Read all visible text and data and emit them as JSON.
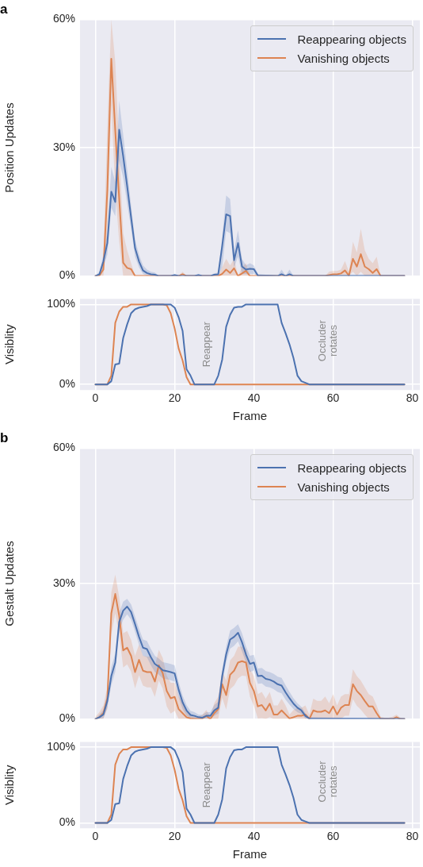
{
  "chart_data": [
    {
      "type": "line",
      "title": "a",
      "ylabel": "Position Updates",
      "xlim": [
        -3.9,
        81.9
      ],
      "xticks": [
        0,
        20,
        40,
        60,
        80
      ],
      "ylim": [
        0,
        60
      ],
      "yticks": [
        {
          "value": 0,
          "label": "0%"
        },
        {
          "value": 30,
          "label": "30%"
        },
        {
          "value": 60,
          "label": "60%"
        }
      ],
      "grid": true,
      "legend": "top right",
      "tick_labels": "y",
      "series": [
        {
          "name": "Reappearing objects",
          "color": "#4c72b0",
          "x": [
            0,
            1,
            2,
            3,
            4,
            5,
            6,
            7,
            8,
            9,
            10,
            11,
            12,
            13,
            14,
            15,
            16,
            19,
            20,
            21,
            25,
            26,
            27,
            29,
            30,
            31,
            32,
            33,
            34,
            35,
            36,
            37,
            38,
            39,
            40,
            41,
            46,
            47,
            48,
            49,
            50,
            78
          ],
          "values": [
            0,
            0.4,
            3.4,
            7.7,
            19.7,
            17.3,
            34.2,
            28,
            21,
            13.7,
            6.5,
            3.4,
            1.3,
            0.7,
            0.4,
            0.3,
            0,
            0,
            0.2,
            0,
            0,
            0.2,
            0,
            0,
            0.3,
            0.4,
            7,
            14.4,
            14,
            3.7,
            7.7,
            2.2,
            1.5,
            1.7,
            1.6,
            0.1,
            0,
            0.4,
            0,
            0.4,
            0,
            0
          ],
          "upper": [
            0,
            1,
            5,
            10,
            25.5,
            22,
            41,
            33,
            25,
            16.5,
            8.5,
            5,
            2.5,
            1.5,
            1,
            0.8,
            0,
            0,
            0.5,
            0,
            0,
            0.5,
            0,
            0,
            0.6,
            0.8,
            9,
            18.8,
            18,
            6,
            10.7,
            4,
            2.5,
            3,
            2.5,
            0.5,
            0,
            1.5,
            0,
            1.5,
            0,
            0
          ],
          "lower": [
            0,
            0,
            2,
            5,
            16,
            14,
            27,
            23,
            17,
            11,
            4.5,
            2,
            0.5,
            0,
            0,
            0,
            0,
            0,
            0,
            0,
            0,
            0,
            0,
            0,
            0,
            0,
            2,
            10.5,
            10,
            2,
            4.5,
            0.5,
            0.5,
            0.5,
            0.5,
            0,
            0,
            0,
            0,
            0,
            0,
            0
          ]
        },
        {
          "name": "Vanishing objects",
          "color": "#dd8452",
          "x": [
            0,
            1,
            2,
            3,
            4,
            5,
            6,
            7,
            8,
            9,
            10,
            21,
            22,
            23,
            31,
            32,
            33,
            34,
            35,
            36,
            37,
            38,
            39,
            58,
            59,
            60,
            61,
            62,
            63,
            64,
            65,
            66,
            67,
            68,
            69,
            70,
            71,
            72,
            78
          ],
          "values": [
            0,
            0.1,
            1.5,
            20,
            50.8,
            34,
            18,
            3.1,
            1.9,
            1.6,
            0,
            0,
            0.4,
            0,
            0,
            0.5,
            1.5,
            0.7,
            1.8,
            0,
            0.6,
            1.2,
            0,
            0,
            0.2,
            0.4,
            0.4,
            0.6,
            1.3,
            0.1,
            4,
            2.2,
            5.1,
            2.2,
            1.6,
            0.7,
            1.6,
            0,
            0
          ],
          "upper": [
            0,
            0.5,
            4,
            35,
            60,
            50,
            30,
            10,
            6,
            3,
            0,
            0,
            1,
            0,
            0,
            2,
            4,
            2.5,
            4,
            0,
            2,
            3,
            0,
            0,
            1,
            1.2,
            1.2,
            1.5,
            3.5,
            1,
            8,
            5.5,
            11,
            6,
            4,
            3,
            4.5,
            0,
            0
          ],
          "lower": [
            0,
            0,
            0,
            10,
            40,
            20,
            8,
            0,
            0,
            0,
            0,
            0,
            0,
            0,
            0,
            0,
            0,
            0,
            0,
            0,
            0,
            0,
            0,
            0,
            0,
            0,
            0,
            0,
            0,
            0,
            1,
            0,
            1,
            0,
            0,
            0,
            0,
            0,
            0
          ]
        }
      ]
    },
    {
      "type": "line",
      "xlabel": "Frame",
      "ylabel": "Visiblity",
      "xlim": [
        -3.9,
        81.9
      ],
      "xticks": [
        0,
        20,
        40,
        60,
        80
      ],
      "ylim": [
        -7,
        107
      ],
      "yticks": [
        {
          "value": 0,
          "label": "0%"
        },
        {
          "value": 100,
          "label": "100%"
        }
      ],
      "grid": true,
      "annotations": [
        "Reappear",
        "Occluder rotates"
      ],
      "series": [
        {
          "color": "#4c72b0",
          "x": [
            0,
            3,
            4,
            5,
            6,
            7,
            8,
            9,
            10,
            11,
            12,
            13,
            14,
            19,
            20,
            21,
            22,
            23,
            24,
            25,
            30,
            31,
            32,
            33,
            34,
            35,
            36,
            37,
            38,
            46,
            47,
            48,
            49,
            50,
            51,
            52,
            53,
            54,
            78
          ],
          "values": [
            0,
            0,
            4,
            25,
            26,
            58,
            75,
            89,
            94,
            96,
            97,
            98,
            100,
            100,
            96,
            84,
            67,
            19,
            11,
            0,
            0,
            11,
            31,
            72,
            87,
            96,
            97,
            97,
            100,
            100,
            77,
            64,
            50,
            33,
            11,
            4,
            2,
            0,
            0
          ]
        },
        {
          "color": "#dd8452",
          "x": [
            0,
            3,
            4,
            5,
            6,
            7,
            8,
            9,
            17,
            18,
            19,
            20,
            21,
            22,
            23,
            24,
            78
          ],
          "values": [
            0,
            0,
            11,
            77,
            91,
            97,
            97,
            100,
            100,
            99,
            89,
            70,
            45,
            30,
            9,
            0,
            0
          ]
        }
      ]
    },
    {
      "type": "line",
      "title": "b",
      "ylabel": "Gestalt Updates",
      "xlim": [
        -3.9,
        81.9
      ],
      "xticks": [
        0,
        20,
        40,
        60,
        80
      ],
      "ylim": [
        0,
        60
      ],
      "yticks": [
        {
          "value": 0,
          "label": "0%"
        },
        {
          "value": 30,
          "label": "30%"
        },
        {
          "value": 60,
          "label": "60%"
        }
      ],
      "grid": true,
      "legend": "top right",
      "tick_labels": "y",
      "series": [
        {
          "name": "Reappearing objects",
          "color": "#4c72b0",
          "x": [
            0,
            1,
            2,
            3,
            4,
            5,
            6,
            7,
            8,
            9,
            10,
            11,
            12,
            13,
            14,
            15,
            16,
            17,
            18,
            19,
            20,
            21,
            22,
            23,
            24,
            25,
            26,
            27,
            28,
            29,
            30,
            31,
            32,
            33,
            34,
            35,
            36,
            37,
            38,
            39,
            40,
            41,
            42,
            43,
            44,
            45,
            46,
            47,
            48,
            49,
            50,
            51,
            52,
            53,
            54,
            78
          ],
          "values": [
            0,
            0.4,
            1,
            4,
            9.5,
            12.5,
            21.5,
            24,
            24.9,
            23.7,
            21,
            18.2,
            15.8,
            15.5,
            13.7,
            12.2,
            11.6,
            10.8,
            10.6,
            10.4,
            10.1,
            6.5,
            3.7,
            1.9,
            0.9,
            0.7,
            0.4,
            0.3,
            0.7,
            0.7,
            1.9,
            2.5,
            9.5,
            14.3,
            17.6,
            18.2,
            19.1,
            17,
            14.3,
            12.2,
            12.5,
            9.5,
            9.6,
            8.9,
            8.7,
            8.3,
            7.7,
            7.4,
            5.9,
            4.6,
            3.4,
            2.5,
            1.9,
            0.7,
            0.1,
            0
          ],
          "upper": [
            0,
            1,
            2,
            5.5,
            11.5,
            14.5,
            23.5,
            26,
            26.6,
            25.4,
            22.7,
            20,
            17.6,
            17.3,
            15.5,
            14,
            13.4,
            12.6,
            12.4,
            12.2,
            11.9,
            8.2,
            5.2,
            3.1,
            1.8,
            1.5,
            1,
            0.9,
            1.5,
            1.5,
            3.1,
            3.8,
            11,
            16,
            19.6,
            20.2,
            21,
            19,
            16.1,
            14,
            14.2,
            11.2,
            11.3,
            10.6,
            10.4,
            10,
            9.4,
            9.1,
            7.5,
            6,
            4.6,
            3.5,
            2.7,
            1.3,
            0.4,
            0
          ],
          "lower": [
            0,
            0,
            0.2,
            2.5,
            7.5,
            10.5,
            19.5,
            22,
            23.2,
            22,
            19.3,
            16.4,
            14,
            13.7,
            11.9,
            10.4,
            9.8,
            9,
            8.8,
            8.6,
            8.3,
            4.8,
            2.2,
            0.7,
            0.1,
            0,
            0,
            0,
            0,
            0,
            0.7,
            1.2,
            8,
            12.6,
            15.6,
            16.2,
            17.2,
            15,
            12.5,
            10.4,
            10.8,
            7.8,
            7.9,
            7.2,
            7,
            6.6,
            6,
            5.7,
            4.3,
            3.2,
            2.2,
            1.5,
            1.1,
            0.1,
            0,
            0
          ]
        },
        {
          "name": "Vanishing objects",
          "color": "#dd8452",
          "x": [
            0,
            1,
            2,
            3,
            4,
            5,
            6,
            7,
            8,
            9,
            10,
            11,
            12,
            13,
            14,
            15,
            16,
            17,
            18,
            19,
            20,
            21,
            22,
            23,
            24,
            25,
            26,
            27,
            28,
            29,
            30,
            31,
            32,
            33,
            34,
            35,
            36,
            37,
            38,
            39,
            40,
            41,
            42,
            43,
            44,
            45,
            46,
            47,
            48,
            49,
            50,
            51,
            52,
            53,
            54,
            55,
            56,
            57,
            58,
            59,
            60,
            61,
            62,
            63,
            64,
            65,
            66,
            67,
            68,
            69,
            70,
            71,
            72,
            73,
            74,
            75,
            76,
            77,
            78
          ],
          "values": [
            0,
            0.4,
            1.3,
            4.6,
            23.4,
            27.7,
            22.8,
            15.2,
            15.8,
            14,
            10.4,
            13.1,
            10.7,
            10.4,
            10.4,
            8.3,
            11.9,
            10.1,
            6.2,
            4.6,
            4.9,
            2.2,
            1.3,
            0.4,
            0.1,
            0,
            0,
            0.1,
            0.7,
            0,
            1.3,
            2.2,
            7.7,
            5.3,
            9.8,
            10.7,
            12.5,
            12.8,
            12.5,
            8,
            6.2,
            2.8,
            3.1,
            1.9,
            3.4,
            1,
            1,
            1.9,
            1,
            0.1,
            0.4,
            0.7,
            0.7,
            1,
            0,
            1.9,
            1.6,
            1.6,
            1.9,
            1.3,
            2.8,
            1,
            2.5,
            3.1,
            3.1,
            7.7,
            6.2,
            5.3,
            4,
            2.8,
            2.8,
            1.3,
            0,
            0,
            0,
            0,
            0.4,
            0,
            0
          ],
          "upper": [
            0.5,
            1.5,
            3,
            7,
            28,
            32,
            27,
            19,
            19.5,
            17.5,
            14,
            16.5,
            14,
            13.8,
            13.8,
            11.7,
            15.3,
            13.5,
            9.6,
            8,
            8,
            5,
            3.8,
            2,
            1,
            0.5,
            0.5,
            1,
            2,
            0.5,
            3.5,
            5,
            10.7,
            8.5,
            13,
            14,
            16,
            16,
            15.5,
            11,
            9.5,
            5.5,
            6,
            4.5,
            6,
            3,
            3,
            4.5,
            3,
            1,
            2,
            2.5,
            2.5,
            3,
            1,
            4.5,
            4,
            4,
            5,
            3.5,
            5.5,
            3,
            5,
            5.5,
            5.5,
            11,
            9.5,
            8.5,
            7,
            5.5,
            5,
            3,
            0.5,
            0.3,
            0.3,
            0.5,
            1,
            0.3,
            0
          ],
          "lower": [
            0,
            0,
            0,
            2.2,
            18.8,
            23.4,
            18.6,
            11.4,
            12.1,
            10.5,
            6.8,
            9.7,
            7.4,
            7,
            7,
            4.9,
            8.5,
            6.7,
            2.8,
            1.2,
            1.8,
            0,
            0,
            0,
            0,
            0,
            0,
            0,
            0,
            0,
            0,
            0,
            4.7,
            2.1,
            6.6,
            7.4,
            9,
            9.6,
            9.5,
            5,
            2.9,
            0.1,
            0.2,
            0,
            0.4,
            0,
            0,
            0,
            0,
            0,
            0,
            0,
            0,
            0,
            0,
            0,
            0,
            0,
            0,
            0,
            0.1,
            0,
            0,
            0.7,
            0.7,
            4.4,
            2.9,
            2.1,
            1,
            0,
            0,
            0,
            0,
            0,
            0,
            0,
            0,
            0,
            0
          ]
        }
      ]
    },
    {
      "type": "line",
      "xlabel": "Frame",
      "ylabel": "Visiblity",
      "xlim": [
        -3.9,
        81.9
      ],
      "xticks": [
        0,
        20,
        40,
        60,
        80
      ],
      "ylim": [
        -7,
        107
      ],
      "yticks": [
        {
          "value": 0,
          "label": "0%"
        },
        {
          "value": 100,
          "label": "100%"
        }
      ],
      "grid": true,
      "annotations": [
        "Reappear",
        "Occluder rotates"
      ],
      "series": [
        {
          "color": "#4c72b0",
          "x": [
            0,
            3,
            4,
            5,
            6,
            7,
            8,
            9,
            10,
            11,
            12,
            13,
            14,
            19,
            20,
            21,
            22,
            23,
            24,
            25,
            30,
            31,
            32,
            33,
            34,
            35,
            36,
            37,
            38,
            46,
            47,
            48,
            49,
            50,
            51,
            52,
            53,
            54,
            78
          ],
          "values": [
            0,
            0,
            4,
            25,
            26,
            58,
            75,
            89,
            94,
            96,
            97,
            98,
            100,
            100,
            96,
            84,
            67,
            19,
            11,
            0,
            0,
            11,
            31,
            72,
            87,
            96,
            97,
            97,
            100,
            100,
            77,
            64,
            50,
            33,
            11,
            4,
            2,
            0,
            0
          ]
        },
        {
          "color": "#dd8452",
          "x": [
            0,
            3,
            4,
            5,
            6,
            7,
            8,
            9,
            17,
            18,
            19,
            20,
            21,
            22,
            23,
            24,
            78
          ],
          "values": [
            0,
            0,
            11,
            77,
            91,
            97,
            97,
            100,
            100,
            99,
            89,
            70,
            45,
            30,
            9,
            0,
            0
          ]
        }
      ]
    }
  ]
}
